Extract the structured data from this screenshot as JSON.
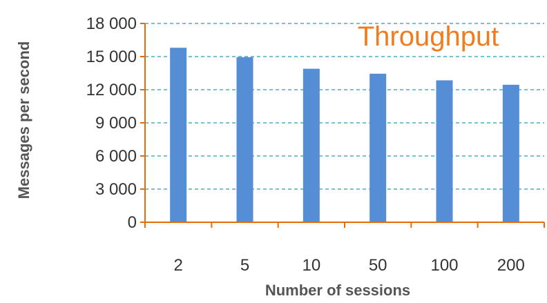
{
  "chart_data": {
    "type": "bar",
    "title": "Throughput",
    "xlabel": "Number of sessions",
    "ylabel": "Messages per second",
    "categories": [
      "2",
      "5",
      "10",
      "50",
      "100",
      "200"
    ],
    "values": [
      15800,
      14950,
      13900,
      13450,
      12850,
      12450
    ],
    "ylim": [
      0,
      18000
    ],
    "yticks": [
      0,
      3000,
      6000,
      9000,
      12000,
      15000,
      18000
    ],
    "ytick_labels": [
      "0",
      "3 000",
      "6 000",
      "9 000",
      "12 000",
      "15 000",
      "18 000"
    ],
    "grid": true,
    "legend": "none",
    "colors": {
      "bar": "#558ED5",
      "axis": "#E36C0A",
      "grid": "#4BACC6",
      "title": "#F07C20"
    }
  }
}
